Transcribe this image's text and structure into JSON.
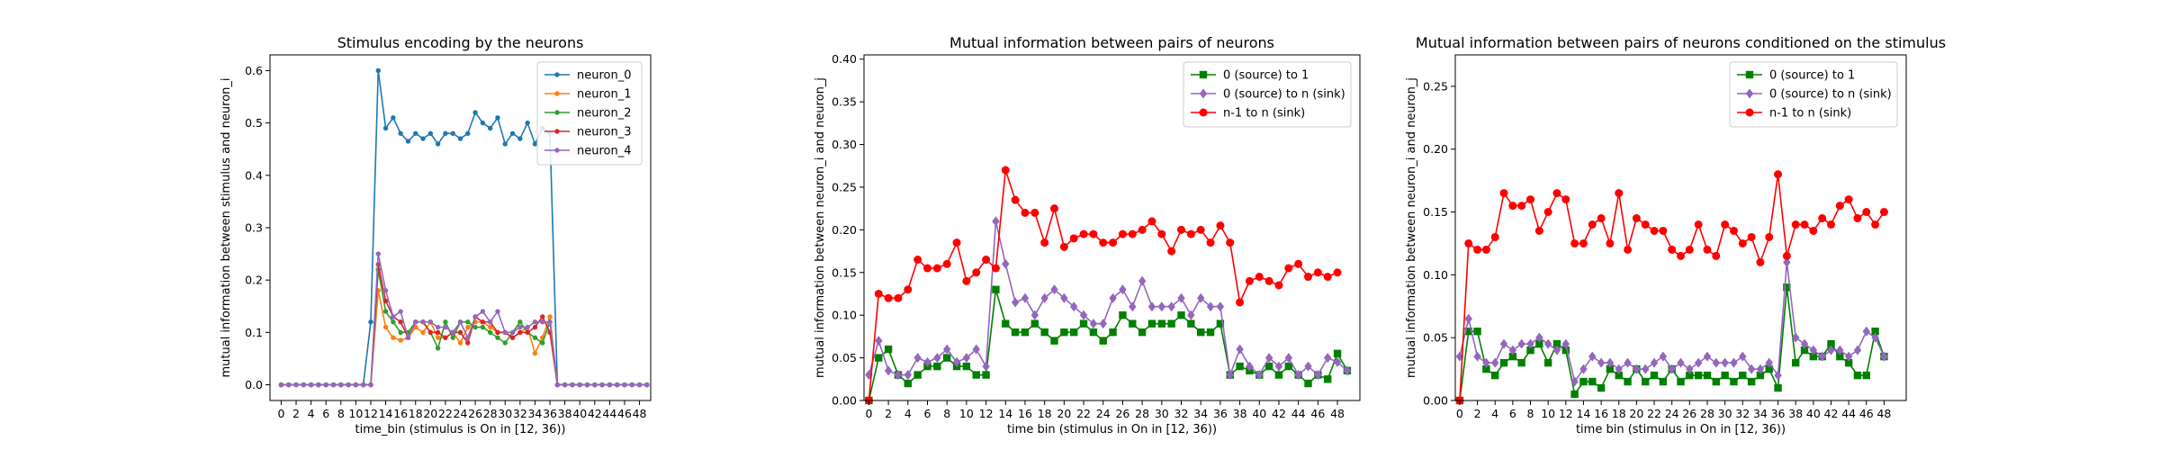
{
  "colors": {
    "blue": "#1f77b4",
    "orange": "#ff7f0e",
    "green_tab": "#2ca02c",
    "red_tab": "#d62728",
    "purple": "#9467bd",
    "green": "#008000",
    "mpurple": "#9467bd",
    "red": "#ff0000"
  },
  "chart_data": [
    {
      "type": "line",
      "title": "Stimulus encoding by the neurons",
      "xlabel": "time_bin (stimulus is On in [12, 36))",
      "ylabel": "mutual information between stimulus and neuron_i",
      "xlim": [
        -1.5,
        49.5
      ],
      "ylim": [
        -0.03,
        0.63
      ],
      "xticks": [
        0,
        2,
        4,
        6,
        8,
        10,
        12,
        14,
        16,
        18,
        20,
        22,
        24,
        26,
        28,
        30,
        32,
        34,
        36,
        38,
        40,
        42,
        44,
        46,
        48
      ],
      "yticks": [
        0.0,
        0.1,
        0.2,
        0.3,
        0.4,
        0.5,
        0.6
      ],
      "ytick_labels": [
        "0.0",
        "0.1",
        "0.2",
        "0.3",
        "0.4",
        "0.5",
        "0.6"
      ],
      "legend_position": "top-right",
      "grid": false,
      "series": [
        {
          "name": "neuron_0",
          "color": "blue",
          "marker": "dot",
          "values": [
            0,
            0,
            0,
            0,
            0,
            0,
            0,
            0,
            0,
            0,
            0,
            0,
            0.12,
            0.6,
            0.49,
            0.51,
            0.48,
            0.465,
            0.48,
            0.47,
            0.48,
            0.46,
            0.48,
            0.48,
            0.47,
            0.48,
            0.52,
            0.5,
            0.49,
            0.51,
            0.46,
            0.48,
            0.47,
            0.5,
            0.46,
            0.49,
            0.48,
            0,
            0,
            0,
            0,
            0,
            0,
            0,
            0,
            0,
            0,
            0,
            0,
            0
          ]
        },
        {
          "name": "neuron_1",
          "color": "orange",
          "marker": "dot",
          "values": [
            0,
            0,
            0,
            0,
            0,
            0,
            0,
            0,
            0,
            0,
            0,
            0,
            0,
            0.18,
            0.11,
            0.09,
            0.085,
            0.09,
            0.11,
            0.1,
            0.12,
            0.09,
            0.09,
            0.1,
            0.08,
            0.11,
            0.12,
            0.12,
            0.11,
            0.1,
            0.1,
            0.09,
            0.1,
            0.11,
            0.06,
            0.09,
            0.13,
            0,
            0,
            0,
            0,
            0,
            0,
            0,
            0,
            0,
            0,
            0,
            0,
            0
          ]
        },
        {
          "name": "neuron_2",
          "color": "green_tab",
          "marker": "dot",
          "values": [
            0,
            0,
            0,
            0,
            0,
            0,
            0,
            0,
            0,
            0,
            0,
            0,
            0,
            0.22,
            0.14,
            0.12,
            0.1,
            0.1,
            0.12,
            0.12,
            0.1,
            0.07,
            0.12,
            0.09,
            0.12,
            0.12,
            0.11,
            0.11,
            0.1,
            0.09,
            0.08,
            0.1,
            0.12,
            0.1,
            0.09,
            0.08,
            0.12,
            0,
            0,
            0,
            0,
            0,
            0,
            0,
            0,
            0,
            0,
            0,
            0,
            0
          ]
        },
        {
          "name": "neuron_3",
          "color": "red_tab",
          "marker": "dot",
          "values": [
            0,
            0,
            0,
            0,
            0,
            0,
            0,
            0,
            0,
            0,
            0,
            0,
            0,
            0.23,
            0.16,
            0.13,
            0.12,
            0.09,
            0.12,
            0.12,
            0.1,
            0.1,
            0.09,
            0.1,
            0.1,
            0.08,
            0.13,
            0.12,
            0.12,
            0.1,
            0.1,
            0.09,
            0.1,
            0.1,
            0.11,
            0.13,
            0.1,
            0,
            0,
            0,
            0,
            0,
            0,
            0,
            0,
            0,
            0,
            0,
            0,
            0
          ]
        },
        {
          "name": "neuron_4",
          "color": "purple",
          "marker": "dot",
          "values": [
            0,
            0,
            0,
            0,
            0,
            0,
            0,
            0,
            0,
            0,
            0,
            0,
            0,
            0.25,
            0.18,
            0.13,
            0.14,
            0.09,
            0.12,
            0.12,
            0.12,
            0.11,
            0.11,
            0.1,
            0.12,
            0.09,
            0.13,
            0.14,
            0.12,
            0.14,
            0.1,
            0.1,
            0.11,
            0.11,
            0.12,
            0.12,
            0.12,
            0,
            0,
            0,
            0,
            0,
            0,
            0,
            0,
            0,
            0,
            0,
            0,
            0
          ]
        }
      ]
    },
    {
      "type": "line",
      "title": "Mutual information between pairs of neurons",
      "xlabel": "time bin (stimulus in On in [12, 36))",
      "ylabel": "mutual information between neuron_i and neuron_j",
      "xlim": [
        -0.5,
        50.3
      ],
      "ylim": [
        0,
        0.405
      ],
      "xticks": [
        0,
        2,
        4,
        6,
        8,
        10,
        12,
        14,
        16,
        18,
        20,
        22,
        24,
        26,
        28,
        30,
        32,
        34,
        36,
        38,
        40,
        42,
        44,
        46,
        48
      ],
      "yticks": [
        0.0,
        0.05,
        0.1,
        0.15,
        0.2,
        0.25,
        0.3,
        0.35,
        0.4
      ],
      "ytick_labels": [
        "0.00",
        "0.05",
        "0.10",
        "0.15",
        "0.20",
        "0.25",
        "0.30",
        "0.35",
        "0.40"
      ],
      "legend_position": "top-right",
      "grid": false,
      "series": [
        {
          "name": "0 (source) to 1",
          "color": "green",
          "marker": "square",
          "values": [
            0,
            0.05,
            0.06,
            0.03,
            0.02,
            0.03,
            0.04,
            0.04,
            0.05,
            0.04,
            0.04,
            0.03,
            0.03,
            0.13,
            0.09,
            0.08,
            0.08,
            0.09,
            0.08,
            0.07,
            0.08,
            0.08,
            0.09,
            0.08,
            0.07,
            0.08,
            0.1,
            0.09,
            0.08,
            0.09,
            0.09,
            0.09,
            0.1,
            0.09,
            0.08,
            0.08,
            0.09,
            0.03,
            0.04,
            0.035,
            0.03,
            0.04,
            0.03,
            0.04,
            0.03,
            0.02,
            0.03,
            0.025,
            0.055,
            0.035
          ]
        },
        {
          "name": "0 (source) to n (sink)",
          "color": "mpurple",
          "marker": "diamond",
          "values": [
            0.03,
            0.07,
            0.035,
            0.03,
            0.03,
            0.05,
            0.045,
            0.05,
            0.06,
            0.045,
            0.05,
            0.06,
            0.04,
            0.21,
            0.16,
            0.115,
            0.12,
            0.1,
            0.12,
            0.13,
            0.12,
            0.11,
            0.1,
            0.09,
            0.09,
            0.12,
            0.13,
            0.11,
            0.14,
            0.11,
            0.11,
            0.11,
            0.12,
            0.1,
            0.12,
            0.11,
            0.11,
            0.03,
            0.06,
            0.04,
            0.03,
            0.05,
            0.04,
            0.05,
            0.03,
            0.04,
            0.03,
            0.05,
            0.045,
            0.035
          ]
        },
        {
          "name": "n-1 to n (sink)",
          "color": "red",
          "marker": "dot",
          "values": [
            0,
            0.125,
            0.12,
            0.12,
            0.13,
            0.165,
            0.155,
            0.155,
            0.16,
            0.185,
            0.14,
            0.15,
            0.165,
            0.155,
            0.27,
            0.235,
            0.22,
            0.22,
            0.185,
            0.225,
            0.18,
            0.19,
            0.195,
            0.195,
            0.185,
            0.185,
            0.195,
            0.195,
            0.2,
            0.21,
            0.195,
            0.175,
            0.2,
            0.195,
            0.2,
            0.185,
            0.205,
            0.185,
            0.115,
            0.14,
            0.145,
            0.14,
            0.135,
            0.155,
            0.16,
            0.145,
            0.15,
            0.145,
            0.15
          ]
        }
      ]
    },
    {
      "type": "line",
      "title": "Mutual information between pairs of neurons conditioned on the stimulus",
      "xlabel": "time bin (stimulus in On in [12, 36))",
      "ylabel": "mutual information between neuron_i and neuron_j",
      "xlim": [
        -0.5,
        50.5
      ],
      "ylim": [
        0,
        0.275
      ],
      "xticks": [
        0,
        2,
        4,
        6,
        8,
        10,
        12,
        14,
        16,
        18,
        20,
        22,
        24,
        26,
        28,
        30,
        32,
        34,
        36,
        38,
        40,
        42,
        44,
        46,
        48
      ],
      "yticks": [
        0.0,
        0.05,
        0.1,
        0.15,
        0.2,
        0.25
      ],
      "ytick_labels": [
        "0.00",
        "0.05",
        "0.10",
        "0.15",
        "0.20",
        "0.25"
      ],
      "legend_position": "top-right",
      "grid": false,
      "series": [
        {
          "name": "0 (source) to 1",
          "color": "green",
          "marker": "square",
          "values": [
            0,
            0.055,
            0.055,
            0.025,
            0.02,
            0.03,
            0.035,
            0.03,
            0.04,
            0.045,
            0.03,
            0.045,
            0.04,
            0.005,
            0.015,
            0.015,
            0.01,
            0.025,
            0.02,
            0.015,
            0.025,
            0.015,
            0.02,
            0.015,
            0.025,
            0.015,
            0.02,
            0.02,
            0.02,
            0.015,
            0.02,
            0.015,
            0.02,
            0.015,
            0.02,
            0.025,
            0.01,
            0.09,
            0.03,
            0.04,
            0.035,
            0.035,
            0.045,
            0.035,
            0.03,
            0.02,
            0.02,
            0.055,
            0.035
          ]
        },
        {
          "name": "0 (source) to n (sink)",
          "color": "mpurple",
          "marker": "diamond",
          "values": [
            0.035,
            0.065,
            0.035,
            0.03,
            0.03,
            0.045,
            0.04,
            0.045,
            0.045,
            0.05,
            0.045,
            0.04,
            0.045,
            0.015,
            0.025,
            0.035,
            0.03,
            0.03,
            0.025,
            0.03,
            0.025,
            0.025,
            0.03,
            0.035,
            0.025,
            0.03,
            0.025,
            0.03,
            0.035,
            0.03,
            0.03,
            0.03,
            0.035,
            0.025,
            0.025,
            0.03,
            0.02,
            0.11,
            0.05,
            0.045,
            0.04,
            0.035,
            0.04,
            0.04,
            0.035,
            0.04,
            0.055,
            0.05,
            0.035
          ]
        },
        {
          "name": "n-1 to n (sink)",
          "color": "red",
          "marker": "dot",
          "values": [
            0,
            0.125,
            0.12,
            0.12,
            0.13,
            0.165,
            0.155,
            0.155,
            0.16,
            0.135,
            0.15,
            0.165,
            0.16,
            0.125,
            0.125,
            0.14,
            0.145,
            0.125,
            0.165,
            0.12,
            0.145,
            0.14,
            0.135,
            0.135,
            0.12,
            0.115,
            0.12,
            0.14,
            0.12,
            0.115,
            0.14,
            0.135,
            0.125,
            0.13,
            0.11,
            0.13,
            0.18,
            0.115,
            0.14,
            0.14,
            0.135,
            0.145,
            0.14,
            0.155,
            0.16,
            0.145,
            0.15,
            0.14,
            0.15
          ]
        }
      ]
    }
  ]
}
